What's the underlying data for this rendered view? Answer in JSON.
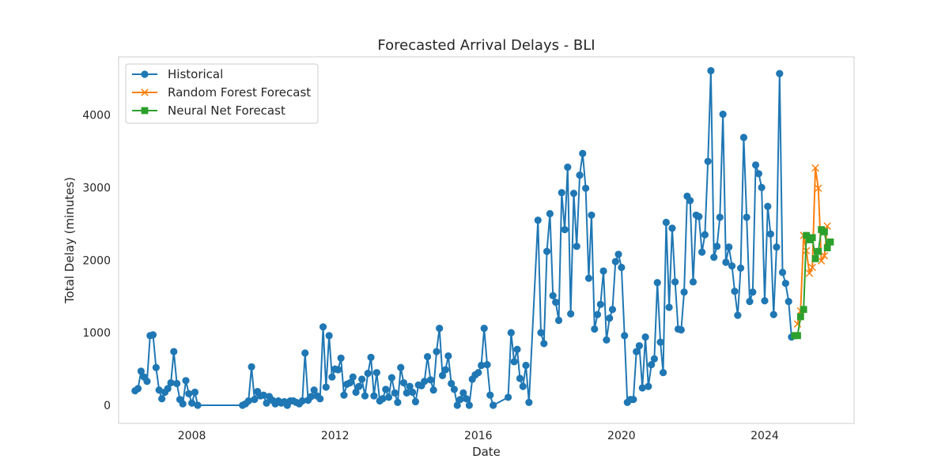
{
  "chart_data": {
    "type": "line",
    "title": "Forecasted Arrival Delays - BLI",
    "xlabel": "Date",
    "ylabel": "Total Delay (minutes)",
    "xlim": [
      "2005-12-15",
      "2026-07-01"
    ],
    "ylim": [
      -250,
      4800
    ],
    "x_ticks": [
      "2008-01-01",
      "2012-01-01",
      "2016-01-01",
      "2020-01-01",
      "2024-01-01"
    ],
    "x_tick_labels": [
      "2008",
      "2012",
      "2016",
      "2020",
      "2024"
    ],
    "y_ticks": [
      0,
      1000,
      2000,
      3000,
      4000
    ],
    "y_tick_labels": [
      "0",
      "1000",
      "2000",
      "3000",
      "4000"
    ],
    "grid": false,
    "legend": "upper-left",
    "series": [
      {
        "name": "Historical",
        "color": "#1f77b4",
        "marker": "circle",
        "points": [
          [
            "2006-06",
            200
          ],
          [
            "2006-07",
            230
          ],
          [
            "2006-08",
            470
          ],
          [
            "2006-09",
            390
          ],
          [
            "2006-10",
            330
          ],
          [
            "2006-11",
            960
          ],
          [
            "2006-12",
            970
          ],
          [
            "2007-01",
            520
          ],
          [
            "2007-02",
            210
          ],
          [
            "2007-03",
            90
          ],
          [
            "2007-04",
            180
          ],
          [
            "2007-05",
            230
          ],
          [
            "2007-06",
            310
          ],
          [
            "2007-07",
            740
          ],
          [
            "2007-08",
            300
          ],
          [
            "2007-09",
            80
          ],
          [
            "2007-10",
            20
          ],
          [
            "2007-11",
            340
          ],
          [
            "2007-12",
            160
          ],
          [
            "2008-01",
            30
          ],
          [
            "2008-02",
            180
          ],
          [
            "2008-03",
            0
          ],
          [
            "2009-06",
            0
          ],
          [
            "2009-07",
            20
          ],
          [
            "2009-08",
            60
          ],
          [
            "2009-09",
            530
          ],
          [
            "2009-10",
            80
          ],
          [
            "2009-11",
            190
          ],
          [
            "2009-12",
            130
          ],
          [
            "2010-01",
            140
          ],
          [
            "2010-02",
            30
          ],
          [
            "2010-03",
            120
          ],
          [
            "2010-04",
            70
          ],
          [
            "2010-05",
            20
          ],
          [
            "2010-06",
            60
          ],
          [
            "2010-07",
            30
          ],
          [
            "2010-08",
            50
          ],
          [
            "2010-09",
            0
          ],
          [
            "2010-10",
            60
          ],
          [
            "2010-11",
            60
          ],
          [
            "2010-12",
            40
          ],
          [
            "2011-01",
            20
          ],
          [
            "2011-02",
            60
          ],
          [
            "2011-03",
            720
          ],
          [
            "2011-04",
            70
          ],
          [
            "2011-05",
            120
          ],
          [
            "2011-06",
            210
          ],
          [
            "2011-07",
            130
          ],
          [
            "2011-08",
            90
          ],
          [
            "2011-09",
            1080
          ],
          [
            "2011-10",
            250
          ],
          [
            "2011-11",
            960
          ],
          [
            "2011-12",
            390
          ],
          [
            "2012-01",
            500
          ],
          [
            "2012-02",
            490
          ],
          [
            "2012-03",
            650
          ],
          [
            "2012-04",
            140
          ],
          [
            "2012-05",
            290
          ],
          [
            "2012-06",
            310
          ],
          [
            "2012-07",
            390
          ],
          [
            "2012-08",
            180
          ],
          [
            "2012-09",
            260
          ],
          [
            "2012-10",
            360
          ],
          [
            "2012-11",
            130
          ],
          [
            "2012-12",
            440
          ],
          [
            "2013-01",
            660
          ],
          [
            "2013-02",
            130
          ],
          [
            "2013-03",
            450
          ],
          [
            "2013-04",
            60
          ],
          [
            "2013-05",
            90
          ],
          [
            "2013-06",
            220
          ],
          [
            "2013-07",
            110
          ],
          [
            "2013-08",
            380
          ],
          [
            "2013-09",
            170
          ],
          [
            "2013-10",
            40
          ],
          [
            "2013-11",
            520
          ],
          [
            "2013-12",
            310
          ],
          [
            "2014-01",
            170
          ],
          [
            "2014-02",
            260
          ],
          [
            "2014-03",
            180
          ],
          [
            "2014-04",
            50
          ],
          [
            "2014-05",
            280
          ],
          [
            "2014-06",
            270
          ],
          [
            "2014-07",
            330
          ],
          [
            "2014-08",
            670
          ],
          [
            "2014-09",
            350
          ],
          [
            "2014-10",
            210
          ],
          [
            "2014-11",
            740
          ],
          [
            "2014-12",
            1060
          ],
          [
            "2015-01",
            410
          ],
          [
            "2015-02",
            490
          ],
          [
            "2015-03",
            680
          ],
          [
            "2015-04",
            300
          ],
          [
            "2015-05",
            220
          ],
          [
            "2015-06",
            0
          ],
          [
            "2015-07",
            80
          ],
          [
            "2015-08",
            170
          ],
          [
            "2015-09",
            90
          ],
          [
            "2015-10",
            0
          ],
          [
            "2015-11",
            360
          ],
          [
            "2015-12",
            420
          ],
          [
            "2016-01",
            450
          ],
          [
            "2016-02",
            550
          ],
          [
            "2016-03",
            1060
          ],
          [
            "2016-04",
            560
          ],
          [
            "2016-05",
            140
          ],
          [
            "2016-06",
            0
          ],
          [
            "2016-11",
            110
          ],
          [
            "2016-12",
            1000
          ],
          [
            "2017-01",
            600
          ],
          [
            "2017-02",
            770
          ],
          [
            "2017-03",
            370
          ],
          [
            "2017-04",
            260
          ],
          [
            "2017-05",
            550
          ],
          [
            "2017-06",
            40
          ],
          [
            "2017-09",
            2550
          ],
          [
            "2017-10",
            1000
          ],
          [
            "2017-11",
            850
          ],
          [
            "2017-12",
            2120
          ],
          [
            "2018-01",
            2640
          ],
          [
            "2018-02",
            1510
          ],
          [
            "2018-03",
            1420
          ],
          [
            "2018-04",
            1170
          ],
          [
            "2018-05",
            2930
          ],
          [
            "2018-06",
            2420
          ],
          [
            "2018-07",
            3280
          ],
          [
            "2018-08",
            1260
          ],
          [
            "2018-09",
            2920
          ],
          [
            "2018-10",
            2190
          ],
          [
            "2018-11",
            3170
          ],
          [
            "2018-12",
            3470
          ],
          [
            "2019-01",
            2990
          ],
          [
            "2019-02",
            1750
          ],
          [
            "2019-03",
            2620
          ],
          [
            "2019-04",
            1050
          ],
          [
            "2019-05",
            1250
          ],
          [
            "2019-06",
            1390
          ],
          [
            "2019-07",
            1850
          ],
          [
            "2019-08",
            900
          ],
          [
            "2019-09",
            1200
          ],
          [
            "2019-10",
            1320
          ],
          [
            "2019-11",
            1980
          ],
          [
            "2019-12",
            2080
          ],
          [
            "2020-01",
            1900
          ],
          [
            "2020-02",
            960
          ],
          [
            "2020-03",
            40
          ],
          [
            "2020-04",
            80
          ],
          [
            "2020-05",
            80
          ],
          [
            "2020-06",
            740
          ],
          [
            "2020-07",
            820
          ],
          [
            "2020-08",
            240
          ],
          [
            "2020-09",
            940
          ],
          [
            "2020-10",
            260
          ],
          [
            "2020-11",
            560
          ],
          [
            "2020-12",
            640
          ],
          [
            "2021-01",
            1690
          ],
          [
            "2021-02",
            870
          ],
          [
            "2021-03",
            450
          ],
          [
            "2021-04",
            2520
          ],
          [
            "2021-05",
            1350
          ],
          [
            "2021-06",
            2440
          ],
          [
            "2021-07",
            1700
          ],
          [
            "2021-08",
            1050
          ],
          [
            "2021-09",
            1040
          ],
          [
            "2021-10",
            1560
          ],
          [
            "2021-11",
            2880
          ],
          [
            "2021-12",
            2820
          ],
          [
            "2022-01",
            1700
          ],
          [
            "2022-02",
            2620
          ],
          [
            "2022-03",
            2600
          ],
          [
            "2022-04",
            2110
          ],
          [
            "2022-05",
            2350
          ],
          [
            "2022-06",
            3360
          ],
          [
            "2022-07",
            4610
          ],
          [
            "2022-08",
            2040
          ],
          [
            "2022-09",
            2190
          ],
          [
            "2022-10",
            2590
          ],
          [
            "2022-11",
            4010
          ],
          [
            "2022-12",
            1970
          ],
          [
            "2023-01",
            2180
          ],
          [
            "2023-02",
            1920
          ],
          [
            "2023-03",
            1570
          ],
          [
            "2023-04",
            1240
          ],
          [
            "2023-05",
            1890
          ],
          [
            "2023-06",
            3690
          ],
          [
            "2023-07",
            2590
          ],
          [
            "2023-08",
            1430
          ],
          [
            "2023-09",
            1560
          ],
          [
            "2023-10",
            3310
          ],
          [
            "2023-11",
            3190
          ],
          [
            "2023-12",
            3000
          ],
          [
            "2024-01",
            1440
          ],
          [
            "2024-02",
            2740
          ],
          [
            "2024-03",
            2360
          ],
          [
            "2024-04",
            1250
          ],
          [
            "2024-05",
            2180
          ],
          [
            "2024-06",
            4570
          ],
          [
            "2024-07",
            1830
          ],
          [
            "2024-08",
            1680
          ],
          [
            "2024-09",
            1430
          ],
          [
            "2024-10",
            940
          ]
        ]
      },
      {
        "name": "Random Forest Forecast",
        "color": "#ff7f0e",
        "marker": "x",
        "points": [
          [
            "2024-12",
            1120
          ],
          [
            "2025-01",
            1300
          ],
          [
            "2025-02",
            2340
          ],
          [
            "2025-03",
            2130
          ],
          [
            "2025-04",
            1820
          ],
          [
            "2025-05",
            1900
          ],
          [
            "2025-06",
            3270
          ],
          [
            "2025-07",
            2990
          ],
          [
            "2025-08",
            1990
          ],
          [
            "2025-09",
            2060
          ],
          [
            "2025-10",
            2470
          ]
        ]
      },
      {
        "name": "Neural Net Forecast",
        "color": "#2ca02c",
        "marker": "square",
        "points": [
          [
            "2024-11",
            960
          ],
          [
            "2024-12",
            960
          ],
          [
            "2025-01",
            1220
          ],
          [
            "2025-02",
            1320
          ],
          [
            "2025-03",
            2340
          ],
          [
            "2025-04",
            2280
          ],
          [
            "2025-05",
            2310
          ],
          [
            "2025-06",
            2020
          ],
          [
            "2025-07",
            2120
          ],
          [
            "2025-08",
            2420
          ],
          [
            "2025-09",
            2390
          ],
          [
            "2025-10",
            2170
          ],
          [
            "2025-11",
            2250
          ]
        ]
      }
    ]
  }
}
